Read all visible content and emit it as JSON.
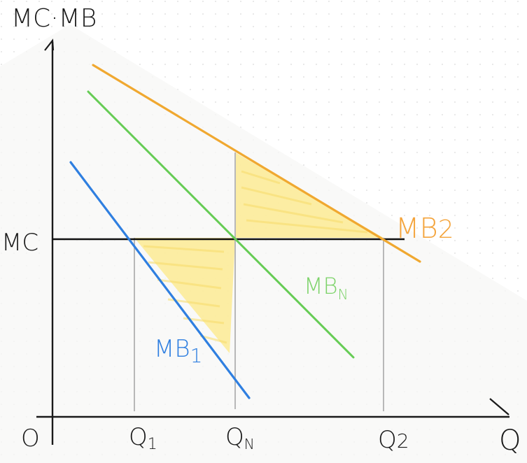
{
  "labels": {
    "y_axis": "MC·MB",
    "x_axis": "Q",
    "origin": "O",
    "mc": "MC",
    "mb1": "MB",
    "mb1_sub": "1",
    "mbn": "MB",
    "mbn_sub": "N",
    "mb2": "MB",
    "mb2_sub": "2",
    "q1": "Q",
    "q1_sub": "1",
    "qn": "Q",
    "qn_sub": "N",
    "q2": "Q",
    "q2_sub": "2"
  },
  "colors": {
    "axis": "#1a1a1a",
    "mc_line": "#111111",
    "mb1_line": "#2f7fe0",
    "mbn_line": "#66cc55",
    "mb2_line": "#f0a830",
    "mb2_label": "#f4a43c",
    "guide": "#b8b8b8",
    "shade": "#fde98a",
    "background_dots": "#d9d9d9"
  }
}
